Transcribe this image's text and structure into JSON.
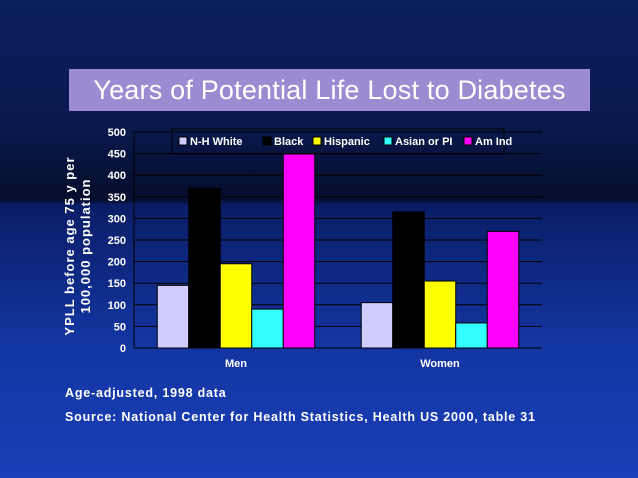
{
  "chart_data": {
    "type": "bar",
    "title": "Years of Potential Life Lost to Diabetes",
    "ylabel": "YPLL before age 75 y per 100,000 population",
    "xlabel": "",
    "categories": [
      "Men",
      "Women"
    ],
    "series": [
      {
        "name": "N-H White",
        "color": "#d0ccff",
        "values": [
          145,
          105
        ]
      },
      {
        "name": "Black",
        "color": "#000000",
        "values": [
          370,
          315
        ]
      },
      {
        "name": "Hispanic",
        "color": "#ffff00",
        "values": [
          195,
          155
        ]
      },
      {
        "name": "Asian or PI",
        "color": "#33ffff",
        "values": [
          90,
          58
        ]
      },
      {
        "name": "Am Ind",
        "color": "#ff00ff",
        "values": [
          450,
          270
        ]
      }
    ],
    "yticks": [
      "0",
      "50",
      "100",
      "150",
      "200",
      "250",
      "300",
      "350",
      "400",
      "450",
      "500"
    ],
    "ylim": [
      0,
      500
    ],
    "grid": true,
    "legend": "top"
  },
  "notes": {
    "line1": "Age-adjusted, 1998 data",
    "line2": "Source: National Center for Health Statistics, Health US 2000, table 31"
  }
}
